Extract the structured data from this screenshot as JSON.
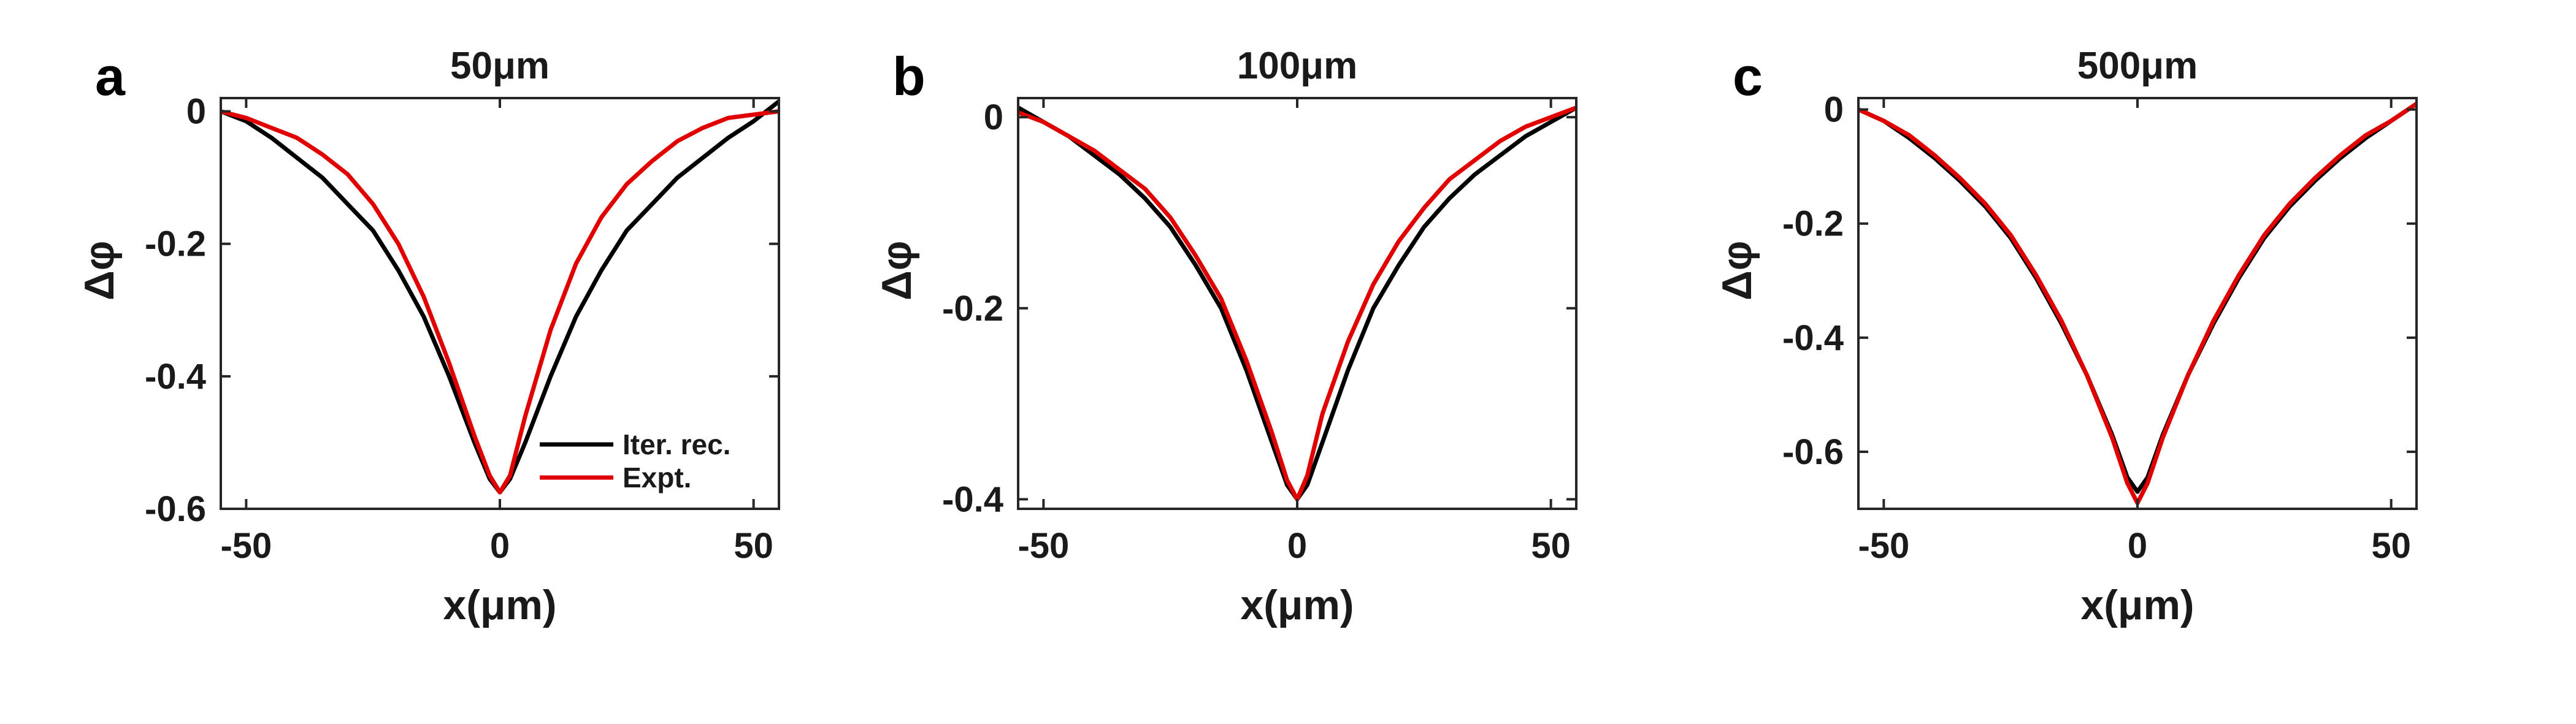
{
  "chart_data": [
    {
      "panel_label": "a",
      "title": "50μm",
      "type": "line",
      "xlabel": "x(μm)",
      "ylabel": "Δφ",
      "xlim": [
        -55,
        55
      ],
      "ylim": [
        -0.6,
        0.02
      ],
      "xticks": [
        -50,
        0,
        50
      ],
      "xtick_labels": [
        "-50",
        "0",
        "50"
      ],
      "yticks": [
        0,
        -0.2,
        -0.4,
        -0.6
      ],
      "ytick_labels": [
        "0",
        "-0.2",
        "-0.4",
        "-0.6"
      ],
      "grid": false,
      "legend": {
        "placement": "bottom-right",
        "entries": [
          "Iter. rec.",
          "Expt."
        ]
      },
      "series": [
        {
          "name": "Iter. rec.",
          "color": "#000000",
          "x": [
            -55,
            -50,
            -45,
            -40,
            -35,
            -30,
            -25,
            -20,
            -15,
            -10,
            -5,
            -2,
            0,
            2,
            5,
            10,
            15,
            20,
            25,
            30,
            35,
            40,
            45,
            50,
            55
          ],
          "y": [
            0.0,
            -0.015,
            -0.04,
            -0.07,
            -0.1,
            -0.14,
            -0.18,
            -0.24,
            -0.31,
            -0.4,
            -0.5,
            -0.555,
            -0.575,
            -0.555,
            -0.5,
            -0.4,
            -0.31,
            -0.24,
            -0.18,
            -0.14,
            -0.1,
            -0.07,
            -0.04,
            -0.015,
            0.015
          ]
        },
        {
          "name": "Expt.",
          "color": "#e00000",
          "x": [
            -55,
            -50,
            -45,
            -40,
            -35,
            -30,
            -25,
            -20,
            -15,
            -10,
            -5,
            -2,
            0,
            2,
            5,
            10,
            15,
            20,
            25,
            30,
            35,
            40,
            45,
            50,
            55
          ],
          "y": [
            0.0,
            -0.01,
            -0.025,
            -0.04,
            -0.065,
            -0.095,
            -0.14,
            -0.2,
            -0.28,
            -0.38,
            -0.49,
            -0.55,
            -0.575,
            -0.55,
            -0.46,
            -0.33,
            -0.23,
            -0.16,
            -0.11,
            -0.075,
            -0.045,
            -0.025,
            -0.01,
            -0.005,
            0.0
          ]
        }
      ]
    },
    {
      "panel_label": "b",
      "title": "100μm",
      "type": "line",
      "xlabel": "x(μm)",
      "ylabel": "Δφ",
      "xlim": [
        -55,
        55
      ],
      "ylim": [
        -0.41,
        0.02
      ],
      "xticks": [
        -50,
        0,
        50
      ],
      "xtick_labels": [
        "-50",
        "0",
        "50"
      ],
      "yticks": [
        0,
        -0.2,
        -0.4
      ],
      "ytick_labels": [
        "0",
        "-0.2",
        "-0.4"
      ],
      "grid": false,
      "series": [
        {
          "name": "Iter. rec.",
          "color": "#000000",
          "x": [
            -55,
            -50,
            -45,
            -40,
            -35,
            -30,
            -25,
            -20,
            -15,
            -10,
            -5,
            -2,
            0,
            2,
            5,
            10,
            15,
            20,
            25,
            30,
            35,
            40,
            45,
            50,
            55
          ],
          "y": [
            0.01,
            -0.005,
            -0.02,
            -0.04,
            -0.06,
            -0.085,
            -0.115,
            -0.155,
            -0.2,
            -0.265,
            -0.34,
            -0.385,
            -0.4,
            -0.385,
            -0.34,
            -0.265,
            -0.2,
            -0.155,
            -0.115,
            -0.085,
            -0.06,
            -0.04,
            -0.02,
            -0.005,
            0.01
          ]
        },
        {
          "name": "Expt.",
          "color": "#e00000",
          "x": [
            -55,
            -50,
            -45,
            -40,
            -35,
            -30,
            -25,
            -20,
            -15,
            -10,
            -5,
            -2,
            0,
            2,
            5,
            10,
            15,
            20,
            25,
            30,
            35,
            40,
            45,
            50,
            55
          ],
          "y": [
            0.005,
            -0.005,
            -0.02,
            -0.035,
            -0.055,
            -0.075,
            -0.105,
            -0.145,
            -0.19,
            -0.255,
            -0.33,
            -0.38,
            -0.4,
            -0.375,
            -0.31,
            -0.235,
            -0.175,
            -0.13,
            -0.095,
            -0.065,
            -0.045,
            -0.025,
            -0.01,
            0.0,
            0.01
          ]
        }
      ]
    },
    {
      "panel_label": "c",
      "title": "500μm",
      "type": "line",
      "xlabel": "x(μm)",
      "ylabel": "Δφ",
      "xlim": [
        -55,
        55
      ],
      "ylim": [
        -0.7,
        0.02
      ],
      "xticks": [
        -50,
        0,
        50
      ],
      "xtick_labels": [
        "-50",
        "0",
        "50"
      ],
      "yticks": [
        0,
        -0.2,
        -0.4,
        -0.6
      ],
      "ytick_labels": [
        "0",
        "-0.2",
        "-0.4",
        "-0.6"
      ],
      "grid": false,
      "series": [
        {
          "name": "Iter. rec.",
          "color": "#000000",
          "x": [
            -55,
            -50,
            -45,
            -40,
            -35,
            -30,
            -25,
            -20,
            -15,
            -10,
            -5,
            -2,
            0,
            2,
            5,
            10,
            15,
            20,
            25,
            30,
            35,
            40,
            45,
            50,
            55
          ],
          "y": [
            0.0,
            -0.02,
            -0.05,
            -0.085,
            -0.125,
            -0.17,
            -0.225,
            -0.295,
            -0.375,
            -0.465,
            -0.57,
            -0.645,
            -0.67,
            -0.645,
            -0.57,
            -0.465,
            -0.375,
            -0.295,
            -0.225,
            -0.17,
            -0.125,
            -0.085,
            -0.05,
            -0.02,
            0.01
          ]
        },
        {
          "name": "Expt.",
          "color": "#e00000",
          "x": [
            -55,
            -50,
            -45,
            -40,
            -35,
            -30,
            -25,
            -20,
            -15,
            -10,
            -5,
            -2,
            0,
            2,
            5,
            10,
            15,
            20,
            25,
            30,
            35,
            40,
            45,
            50,
            55
          ],
          "y": [
            0.0,
            -0.02,
            -0.045,
            -0.08,
            -0.12,
            -0.165,
            -0.22,
            -0.29,
            -0.37,
            -0.465,
            -0.575,
            -0.655,
            -0.69,
            -0.655,
            -0.575,
            -0.465,
            -0.37,
            -0.29,
            -0.22,
            -0.165,
            -0.12,
            -0.08,
            -0.045,
            -0.02,
            0.01
          ]
        }
      ]
    }
  ]
}
